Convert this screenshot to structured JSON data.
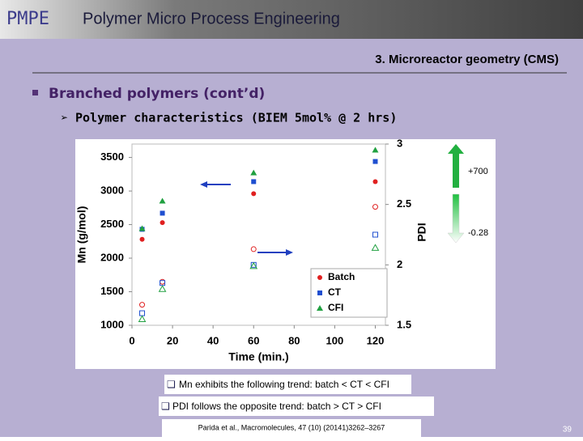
{
  "header": {
    "logo": "PMPE",
    "title": "Polymer Micro Process Engineering"
  },
  "slide_title": "3. Microreactor geometry (CMS)",
  "bullet": "Branched polymers (cont’d)",
  "sub_bullet": "Polymer characteristics (BIEM 5mol% @ 2 hrs)",
  "chart_data": {
    "type": "scatter",
    "x_label": "Time (min.)",
    "y_label": "Mn (g/mol)",
    "y2_label": "PDI",
    "xlim": [
      0,
      125
    ],
    "xticks": [
      0,
      20,
      40,
      60,
      80,
      100,
      120
    ],
    "ylim": [
      1000,
      3700
    ],
    "yticks": [
      1000,
      1500,
      2000,
      2500,
      3000,
      3500
    ],
    "y2lim": [
      1.5,
      3
    ],
    "y2ticks": [
      1.5,
      2,
      2.5,
      3
    ],
    "x": [
      5,
      15,
      60,
      120
    ],
    "series": [
      {
        "name": "Batch",
        "color": "#e02020",
        "marker": "circle",
        "filled": true,
        "values": [
          2280,
          2530,
          2960,
          3140
        ]
      },
      {
        "name": "CT",
        "color": "#1f4fd0",
        "marker": "square",
        "filled": true,
        "values": [
          2430,
          2670,
          3140,
          3440
        ]
      },
      {
        "name": "CFI",
        "color": "#20a040",
        "marker": "triangle",
        "filled": true,
        "values": [
          2440,
          2850,
          3270,
          3610
        ]
      },
      {
        "color": "#e02020",
        "marker": "circle",
        "filled": false,
        "axis": "y2",
        "values": [
          1.67,
          1.86,
          2.13,
          2.48
        ]
      },
      {
        "color": "#1f4fd0",
        "marker": "square",
        "filled": false,
        "axis": "y2",
        "values": [
          1.6,
          1.85,
          2.0,
          2.25
        ]
      },
      {
        "color": "#20a040",
        "marker": "triangle",
        "filled": false,
        "axis": "y2",
        "values": [
          1.55,
          1.8,
          1.99,
          2.14
        ]
      }
    ],
    "annotations": [
      "+700",
      "-0.28"
    ]
  },
  "notes": [
    "Mn exhibits the following trend: batch < CT < CFI",
    "PDI follows the opposite trend: batch > CT > CFI"
  ],
  "citation": "Parida et al., Macromolecules, 47 (10) (20141)3262–3267",
  "page_number": "39"
}
